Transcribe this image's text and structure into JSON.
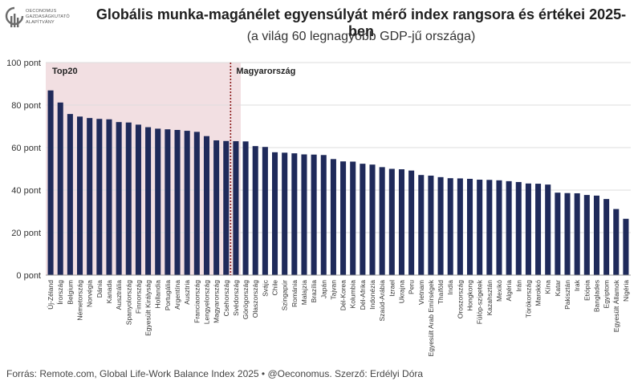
{
  "header": {
    "title": "Globális munka-magánélet egyensúlyát mérő index rangsora és értékei 2025-ben",
    "subtitle": "(a világ 60 legnagyobb GDP-jű országa)",
    "logo_text": [
      "OECONOMUS",
      "GAZDASÁGKUTATÓ",
      "ALAPÍTVÁNY"
    ]
  },
  "footer": {
    "source": "Forrás: Remote.com, Global Life-Work Balance Index 2025 • @Oeconomus. Szerző: Erdélyi Dóra"
  },
  "colors": {
    "bar": "#1f2a5a",
    "highlight": "#f2dfe2",
    "marker": "#8b1a1a",
    "grid": "#dddddd"
  },
  "chart_data": {
    "type": "bar",
    "title": "Globális munka-magánélet egyensúlyát mérő index rangsora és értékei 2025-ben",
    "subtitle": "(a világ 60 legnagyobb GDP-jű országa)",
    "xlabel": "",
    "ylabel": "",
    "ylim": [
      0,
      100
    ],
    "yticks": [
      0,
      20,
      40,
      60,
      80,
      100
    ],
    "ytick_labels": [
      "0 pont",
      "20 pont",
      "40 pont",
      "60 pont",
      "80 pont",
      "100 pont"
    ],
    "grid": true,
    "annotations": {
      "top20_label": "Top20",
      "top20_count": 20,
      "hungary_label": "Magyarország",
      "hungary_index": 19
    },
    "categories": [
      "Új-Zéland",
      "Írország",
      "Belgium",
      "Németország",
      "Norvégia",
      "Dánia",
      "Kanada",
      "Ausztrália",
      "Spanyolország",
      "Finnország",
      "Egyesült Királyság",
      "Hollandia",
      "Portugália",
      "Argentína",
      "Ausztria",
      "Franciaország",
      "Lengyelország",
      "Magyarország",
      "Csehország",
      "Svédország",
      "Görögország",
      "Olaszország",
      "Svájc",
      "Chile",
      "Szingapúr",
      "Románia",
      "Malajzia",
      "Brazília",
      "Japán",
      "Tajvan",
      "Dél-Korea",
      "Kolumbia",
      "Dél-Afrika",
      "Indonézia",
      "Szaúd-Arábia",
      "Izrael",
      "Ukrajna",
      "Peru",
      "Vietnam",
      "Egyesült Arab Emírségek",
      "Thaiföld",
      "India",
      "Oroszország",
      "Hongkong",
      "Fülöp-szigetek",
      "Kazahsztán",
      "Mexikó",
      "Algéria",
      "Irán",
      "Törökország",
      "Marokkó",
      "Kína",
      "Katar",
      "Pakisztán",
      "Irak",
      "Etiópia",
      "Banglades",
      "Egyiptom",
      "Egyesült Államok",
      "Nigéria"
    ],
    "values": [
      86.9,
      81.2,
      75.8,
      74.6,
      73.9,
      73.5,
      73.3,
      72.0,
      71.8,
      70.8,
      69.6,
      68.9,
      68.6,
      68.3,
      67.9,
      67.4,
      65.4,
      63.4,
      63.1,
      63.0,
      62.9,
      60.7,
      60.3,
      57.8,
      57.6,
      57.3,
      56.8,
      56.7,
      56.5,
      54.6,
      53.5,
      53.4,
      52.4,
      52.0,
      50.8,
      50.0,
      49.8,
      49.2,
      47.1,
      46.8,
      46.1,
      45.6,
      45.5,
      45.3,
      44.9,
      44.8,
      44.6,
      44.2,
      43.8,
      43.1,
      43.0,
      42.6,
      38.8,
      38.6,
      38.5,
      37.7,
      37.4,
      35.8,
      31.1,
      26.5
    ]
  }
}
